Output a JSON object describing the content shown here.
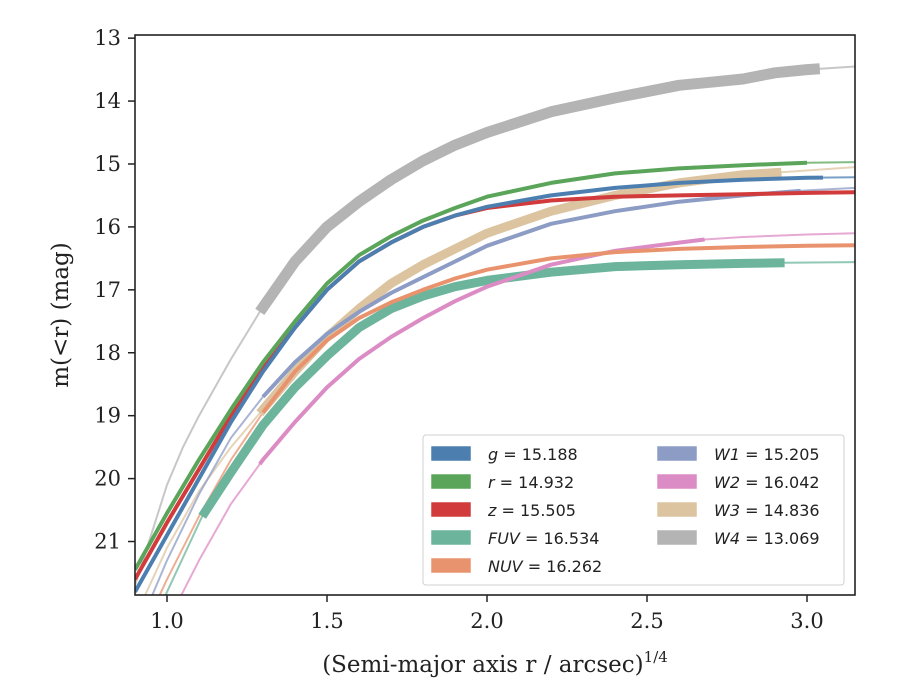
{
  "chart_data": {
    "type": "line",
    "title": "",
    "xlabel": "(Semi-major axis r / arcsec)",
    "xlabel_sup": "1/4",
    "ylabel": "m(<r) (mag)",
    "xlim": [
      0.9,
      3.15
    ],
    "ylim": [
      21.85,
      12.95
    ],
    "y_inverted": true,
    "grid": false,
    "legend_placement": "lower right",
    "x_ticks": [
      "1.0",
      "1.5",
      "2.0",
      "2.5",
      "3.0"
    ],
    "y_ticks": [
      "13",
      "14",
      "15",
      "16",
      "17",
      "18",
      "19",
      "20",
      "21"
    ],
    "series": [
      {
        "name": "g",
        "legend_label": "g = 15.188",
        "color": "#4c7fb0",
        "x": [
          0.9,
          1.0,
          1.1,
          1.2,
          1.3,
          1.4,
          1.5,
          1.6,
          1.7,
          1.8,
          1.9,
          2.0,
          2.2,
          2.4,
          2.6,
          2.8,
          3.0,
          3.15
        ],
        "y": [
          21.8,
          20.9,
          20.0,
          19.1,
          18.3,
          17.6,
          17.0,
          16.55,
          16.25,
          16.0,
          15.82,
          15.68,
          15.5,
          15.38,
          15.3,
          15.25,
          15.22,
          15.21
        ],
        "thick_x": [
          0.9,
          3.05
        ]
      },
      {
        "name": "r",
        "legend_label": "r = 14.932",
        "color": "#5aa55a",
        "x": [
          0.9,
          1.0,
          1.1,
          1.2,
          1.3,
          1.4,
          1.5,
          1.6,
          1.7,
          1.8,
          1.9,
          2.0,
          2.2,
          2.4,
          2.6,
          2.8,
          3.0,
          3.15
        ],
        "y": [
          21.45,
          20.55,
          19.7,
          18.9,
          18.15,
          17.5,
          16.9,
          16.45,
          16.15,
          15.9,
          15.7,
          15.52,
          15.3,
          15.15,
          15.07,
          15.02,
          14.98,
          14.97
        ],
        "thick_x": [
          0.9,
          3.0
        ]
      },
      {
        "name": "z",
        "legend_label": "z = 15.505",
        "color": "#d23b3b",
        "x": [
          0.9,
          1.0,
          1.1,
          1.2,
          1.3,
          1.4,
          1.5,
          1.6,
          1.7,
          1.8,
          1.9,
          2.0,
          2.2,
          2.4,
          2.6,
          2.8,
          3.0,
          3.15
        ],
        "y": [
          21.6,
          20.7,
          19.85,
          19.0,
          18.25,
          17.6,
          17.0,
          16.55,
          16.25,
          16.0,
          15.82,
          15.7,
          15.58,
          15.52,
          15.5,
          15.48,
          15.46,
          15.45
        ],
        "thick_x": [
          0.9,
          3.15
        ]
      },
      {
        "name": "FUV",
        "legend_label": "FUV = 16.534",
        "color": "#6cb59c",
        "x": [
          0.9,
          1.0,
          1.11,
          1.2,
          1.3,
          1.4,
          1.5,
          1.6,
          1.7,
          1.8,
          1.9,
          2.0,
          2.2,
          2.4,
          2.6,
          2.8,
          2.93,
          3.15
        ],
        "y": [
          22.9,
          21.8,
          20.6,
          19.9,
          19.15,
          18.55,
          18.05,
          17.6,
          17.3,
          17.1,
          16.95,
          16.85,
          16.72,
          16.63,
          16.6,
          16.58,
          16.57,
          16.56
        ],
        "thick_x": [
          1.11,
          2.93
        ]
      },
      {
        "name": "NUV",
        "legend_label": "NUV = 16.262",
        "color": "#e9936e",
        "x": [
          0.9,
          1.0,
          1.1,
          1.2,
          1.3,
          1.4,
          1.5,
          1.6,
          1.7,
          1.8,
          1.9,
          2.0,
          2.2,
          2.4,
          2.6,
          2.8,
          3.0,
          3.15
        ],
        "y": [
          22.7,
          21.6,
          20.6,
          19.7,
          18.95,
          18.3,
          17.8,
          17.45,
          17.2,
          17.0,
          16.82,
          16.68,
          16.5,
          16.4,
          16.35,
          16.32,
          16.3,
          16.29
        ],
        "thick_x": [
          1.3,
          3.15
        ]
      },
      {
        "name": "W1",
        "legend_label": "W1 = 15.205",
        "color": "#8c9cc4",
        "x": [
          0.9,
          1.0,
          1.1,
          1.2,
          1.3,
          1.4,
          1.5,
          1.6,
          1.7,
          1.8,
          1.9,
          2.0,
          2.2,
          2.4,
          2.6,
          2.8,
          3.0,
          3.15
        ],
        "y": [
          22.5,
          21.3,
          20.25,
          19.35,
          18.7,
          18.15,
          17.7,
          17.35,
          17.05,
          16.8,
          16.55,
          16.3,
          15.95,
          15.75,
          15.6,
          15.5,
          15.42,
          15.38
        ],
        "thick_x": [
          1.3,
          2.98
        ]
      },
      {
        "name": "W2",
        "legend_label": "W2 = 16.042",
        "color": "#dc8cc4",
        "x": [
          0.9,
          1.0,
          1.1,
          1.2,
          1.3,
          1.4,
          1.5,
          1.6,
          1.7,
          1.8,
          1.9,
          2.0,
          2.2,
          2.4,
          2.6,
          2.68,
          2.8,
          3.0,
          3.15
        ],
        "y": [
          23.3,
          22.3,
          21.3,
          20.4,
          19.7,
          19.1,
          18.55,
          18.1,
          17.75,
          17.45,
          17.18,
          16.95,
          16.6,
          16.38,
          16.25,
          16.2,
          16.16,
          16.12,
          16.1
        ],
        "thick_x": [
          1.29,
          2.68
        ]
      },
      {
        "name": "W3",
        "legend_label": "W3 = 14.836",
        "color": "#ddc4a0",
        "x": [
          0.9,
          1.0,
          1.1,
          1.2,
          1.3,
          1.4,
          1.5,
          1.6,
          1.7,
          1.8,
          1.9,
          2.0,
          2.2,
          2.4,
          2.6,
          2.8,
          2.92,
          3.15
        ],
        "y": [
          22.2,
          21.1,
          20.2,
          19.5,
          18.9,
          18.3,
          17.75,
          17.3,
          16.9,
          16.6,
          16.35,
          16.1,
          15.75,
          15.5,
          15.3,
          15.17,
          15.13,
          15.05
        ],
        "thick_x": [
          1.29,
          2.92
        ]
      },
      {
        "name": "W4",
        "legend_label": "W4 = 13.069",
        "color": "#b4b4b4",
        "x": [
          0.9,
          1.0,
          1.05,
          1.1,
          1.2,
          1.29,
          1.4,
          1.5,
          1.6,
          1.7,
          1.8,
          1.9,
          2.0,
          2.2,
          2.4,
          2.6,
          2.7,
          2.8,
          2.9,
          3.0,
          3.15
        ],
        "y": [
          21.7,
          20.1,
          19.5,
          19.0,
          18.1,
          17.35,
          16.55,
          16.0,
          15.6,
          15.25,
          14.95,
          14.7,
          14.5,
          14.17,
          13.95,
          13.75,
          13.7,
          13.65,
          13.55,
          13.5,
          13.45
        ],
        "thick_x": [
          1.29,
          3.04
        ]
      }
    ]
  }
}
